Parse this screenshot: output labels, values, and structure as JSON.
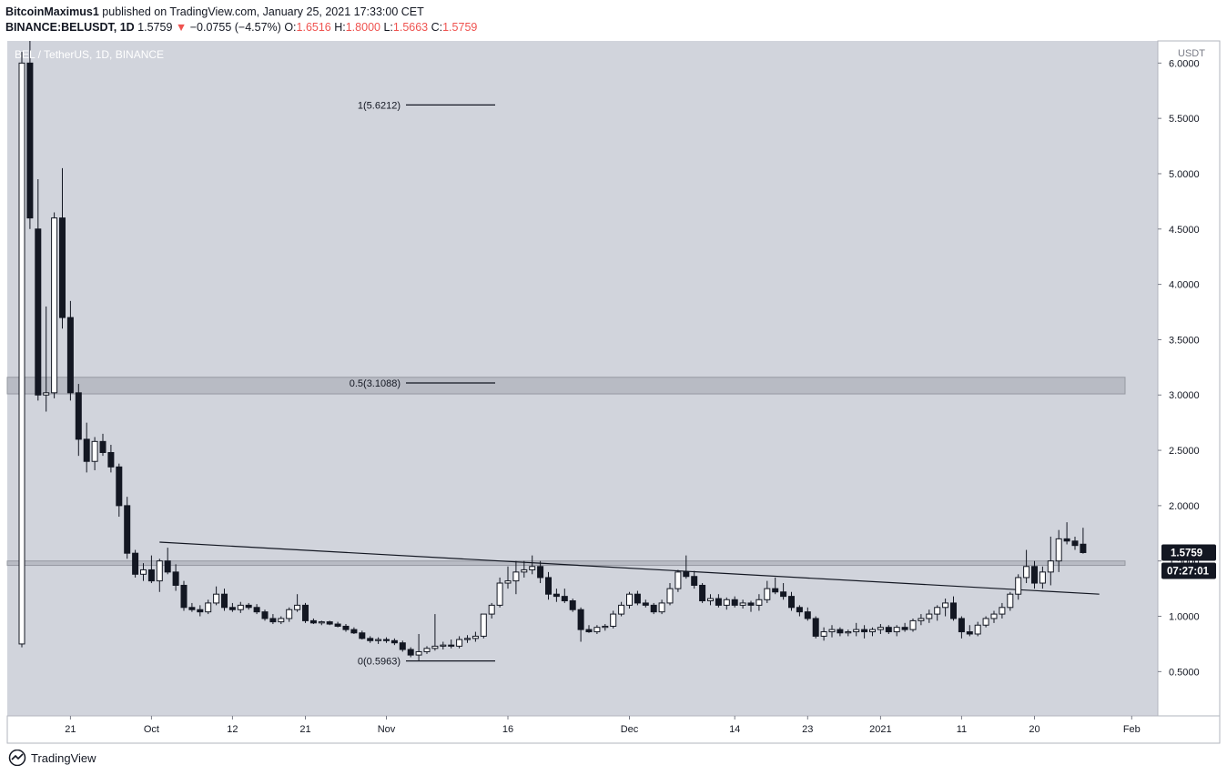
{
  "header": {
    "author": "BitcoinMaximus1",
    "published": "published on TradingView.com, January 25, 2021 17:33:00 CET",
    "symbol": "BINANCE:BELUSDT, 1D",
    "last": "1.5759",
    "change_arrow": "▼",
    "change": "−0.0755 (−4.57%)",
    "o_label": "O:",
    "o": "1.6516",
    "h_label": "H:",
    "h": "1.8000",
    "l_label": "L:",
    "l": "1.5663",
    "c_label": "C:",
    "c": "1.5759"
  },
  "chart_title": "BEL / TetherUS, 1D, BINANCE",
  "currency": "USDT",
  "price_tag": "1.5759",
  "countdown_tag": "07:27:01",
  "footer": {
    "brand": "TradingView"
  },
  "colors": {
    "background": "#d1d4dc",
    "bear": "#131722",
    "bull": "#ffffff",
    "price_tag_bg": "#131722"
  },
  "chart_data": {
    "type": "candlestick",
    "y_axis": {
      "min": 0.1,
      "max": 6.2,
      "ticks": [
        "6.0000",
        "5.5000",
        "5.0000",
        "4.5000",
        "4.0000",
        "3.5000",
        "3.0000",
        "2.5000",
        "2.0000",
        "1.5000",
        "1.0000",
        "0.5000"
      ]
    },
    "x_ticks": [
      {
        "label": "21",
        "index": 6
      },
      {
        "label": "Oct",
        "index": 16
      },
      {
        "label": "12",
        "index": 26
      },
      {
        "label": "21",
        "index": 35
      },
      {
        "label": "Nov",
        "index": 45
      },
      {
        "label": "16",
        "index": 60
      },
      {
        "label": "Dec",
        "index": 75
      },
      {
        "label": "14",
        "index": 88
      },
      {
        "label": "23",
        "index": 97
      },
      {
        "label": "2021",
        "index": 106
      },
      {
        "label": "11",
        "index": 116
      },
      {
        "label": "20",
        "index": 125
      },
      {
        "label": "Feb",
        "index": 137
      }
    ],
    "fib_levels": [
      {
        "label": "1(5.6212)",
        "price": 5.6212
      },
      {
        "label": "0.5(3.1088)",
        "price": 3.1088
      },
      {
        "label": "0(0.5963)",
        "price": 0.5963
      }
    ],
    "zones": [
      {
        "from": 3.01,
        "to": 3.16
      },
      {
        "from": 1.46,
        "to": 1.5
      }
    ],
    "trendline": {
      "from": {
        "index": 17,
        "price": 1.67
      },
      "to": {
        "index": 133,
        "price": 1.2
      }
    },
    "candles": [
      [
        0.75,
        6.1,
        0.72,
        6.0
      ],
      [
        6.0,
        6.2,
        4.5,
        4.6
      ],
      [
        4.5,
        4.95,
        2.95,
        3.0
      ],
      [
        3.0,
        3.8,
        2.85,
        3.02
      ],
      [
        3.02,
        4.65,
        2.97,
        4.6
      ],
      [
        4.6,
        5.05,
        3.6,
        3.7
      ],
      [
        3.7,
        3.85,
        2.95,
        3.02
      ],
      [
        3.02,
        3.1,
        2.45,
        2.6
      ],
      [
        2.6,
        2.75,
        2.3,
        2.4
      ],
      [
        2.4,
        2.62,
        2.32,
        2.58
      ],
      [
        2.58,
        2.65,
        2.45,
        2.48
      ],
      [
        2.48,
        2.55,
        2.3,
        2.35
      ],
      [
        2.35,
        2.38,
        1.9,
        2.0
      ],
      [
        2.0,
        2.08,
        1.52,
        1.57
      ],
      [
        1.57,
        1.6,
        1.35,
        1.38
      ],
      [
        1.38,
        1.48,
        1.32,
        1.42
      ],
      [
        1.42,
        1.55,
        1.3,
        1.32
      ],
      [
        1.32,
        1.52,
        1.22,
        1.5
      ],
      [
        1.5,
        1.62,
        1.38,
        1.4
      ],
      [
        1.4,
        1.47,
        1.23,
        1.28
      ],
      [
        1.28,
        1.32,
        1.05,
        1.08
      ],
      [
        1.08,
        1.12,
        1.04,
        1.06
      ],
      [
        1.06,
        1.1,
        1.0,
        1.04
      ],
      [
        1.04,
        1.15,
        1.02,
        1.12
      ],
      [
        1.12,
        1.27,
        1.1,
        1.2
      ],
      [
        1.2,
        1.25,
        1.05,
        1.08
      ],
      [
        1.08,
        1.12,
        1.04,
        1.06
      ],
      [
        1.06,
        1.13,
        1.03,
        1.1
      ],
      [
        1.1,
        1.12,
        1.06,
        1.08
      ],
      [
        1.08,
        1.11,
        1.02,
        1.04
      ],
      [
        1.04,
        1.06,
        0.96,
        0.98
      ],
      [
        0.98,
        1.02,
        0.93,
        0.95
      ],
      [
        0.95,
        1.0,
        0.93,
        0.98
      ],
      [
        0.98,
        1.08,
        0.95,
        1.06
      ],
      [
        1.06,
        1.2,
        1.04,
        1.1
      ],
      [
        1.1,
        1.12,
        0.94,
        0.96
      ],
      [
        0.96,
        0.98,
        0.93,
        0.94
      ],
      [
        0.94,
        0.96,
        0.92,
        0.95
      ],
      [
        0.95,
        0.96,
        0.92,
        0.93
      ],
      [
        0.93,
        0.95,
        0.9,
        0.91
      ],
      [
        0.91,
        0.93,
        0.86,
        0.88
      ],
      [
        0.88,
        0.9,
        0.84,
        0.85
      ],
      [
        0.85,
        0.87,
        0.79,
        0.8
      ],
      [
        0.8,
        0.82,
        0.76,
        0.78
      ],
      [
        0.78,
        0.81,
        0.75,
        0.79
      ],
      [
        0.79,
        0.81,
        0.76,
        0.78
      ],
      [
        0.78,
        0.8,
        0.74,
        0.76
      ],
      [
        0.76,
        0.78,
        0.68,
        0.7
      ],
      [
        0.7,
        0.72,
        0.63,
        0.65
      ],
      [
        0.65,
        0.84,
        0.6,
        0.68
      ],
      [
        0.68,
        0.73,
        0.66,
        0.71
      ],
      [
        0.71,
        1.02,
        0.69,
        0.73
      ],
      [
        0.73,
        0.77,
        0.7,
        0.74
      ],
      [
        0.74,
        0.79,
        0.71,
        0.73
      ],
      [
        0.73,
        0.82,
        0.71,
        0.79
      ],
      [
        0.79,
        0.83,
        0.76,
        0.8
      ],
      [
        0.8,
        0.86,
        0.77,
        0.82
      ],
      [
        0.82,
        1.0,
        0.8,
        1.02
      ],
      [
        1.02,
        1.12,
        0.98,
        1.1
      ],
      [
        1.1,
        1.35,
        1.08,
        1.3
      ],
      [
        1.3,
        1.45,
        1.25,
        1.32
      ],
      [
        1.32,
        1.5,
        1.2,
        1.4
      ],
      [
        1.4,
        1.5,
        1.35,
        1.42
      ],
      [
        1.42,
        1.55,
        1.38,
        1.45
      ],
      [
        1.45,
        1.5,
        1.3,
        1.35
      ],
      [
        1.35,
        1.4,
        1.15,
        1.2
      ],
      [
        1.2,
        1.25,
        1.13,
        1.18
      ],
      [
        1.18,
        1.25,
        1.12,
        1.14
      ],
      [
        1.14,
        1.16,
        1.04,
        1.06
      ],
      [
        1.06,
        1.08,
        0.77,
        0.88
      ],
      [
        0.88,
        0.92,
        0.85,
        0.86
      ],
      [
        0.86,
        0.92,
        0.84,
        0.9
      ],
      [
        0.9,
        0.93,
        0.87,
        0.91
      ],
      [
        0.91,
        1.05,
        0.89,
        1.02
      ],
      [
        1.02,
        1.13,
        1.0,
        1.1
      ],
      [
        1.1,
        1.22,
        1.07,
        1.2
      ],
      [
        1.2,
        1.23,
        1.1,
        1.12
      ],
      [
        1.12,
        1.15,
        1.08,
        1.1
      ],
      [
        1.1,
        1.12,
        1.02,
        1.04
      ],
      [
        1.04,
        1.15,
        1.02,
        1.12
      ],
      [
        1.12,
        1.3,
        1.1,
        1.25
      ],
      [
        1.25,
        1.42,
        1.22,
        1.4
      ],
      [
        1.4,
        1.55,
        1.34,
        1.36
      ],
      [
        1.36,
        1.41,
        1.25,
        1.28
      ],
      [
        1.28,
        1.3,
        1.12,
        1.14
      ],
      [
        1.14,
        1.2,
        1.1,
        1.16
      ],
      [
        1.16,
        1.2,
        1.08,
        1.1
      ],
      [
        1.1,
        1.17,
        1.06,
        1.15
      ],
      [
        1.15,
        1.18,
        1.08,
        1.1
      ],
      [
        1.1,
        1.15,
        1.07,
        1.12
      ],
      [
        1.12,
        1.14,
        1.04,
        1.1
      ],
      [
        1.1,
        1.2,
        1.05,
        1.15
      ],
      [
        1.15,
        1.32,
        1.12,
        1.25
      ],
      [
        1.25,
        1.35,
        1.2,
        1.22
      ],
      [
        1.22,
        1.3,
        1.15,
        1.18
      ],
      [
        1.18,
        1.22,
        1.05,
        1.08
      ],
      [
        1.08,
        1.1,
        1.0,
        1.04
      ],
      [
        1.04,
        1.08,
        0.96,
        0.98
      ],
      [
        0.98,
        1.0,
        0.8,
        0.82
      ],
      [
        0.82,
        0.9,
        0.78,
        0.86
      ],
      [
        0.86,
        0.92,
        0.81,
        0.88
      ],
      [
        0.88,
        0.9,
        0.82,
        0.85
      ],
      [
        0.85,
        0.88,
        0.82,
        0.86
      ],
      [
        0.86,
        0.94,
        0.82,
        0.88
      ],
      [
        0.88,
        0.92,
        0.8,
        0.86
      ],
      [
        0.86,
        0.9,
        0.82,
        0.88
      ],
      [
        0.88,
        0.93,
        0.84,
        0.9
      ],
      [
        0.9,
        0.92,
        0.84,
        0.86
      ],
      [
        0.86,
        0.92,
        0.82,
        0.9
      ],
      [
        0.9,
        0.94,
        0.86,
        0.88
      ],
      [
        0.88,
        0.98,
        0.86,
        0.96
      ],
      [
        0.96,
        1.02,
        0.92,
        0.98
      ],
      [
        0.98,
        1.06,
        0.94,
        1.02
      ],
      [
        1.02,
        1.1,
        0.96,
        1.08
      ],
      [
        1.08,
        1.16,
        1.0,
        1.12
      ],
      [
        1.12,
        1.18,
        0.96,
        0.98
      ],
      [
        0.98,
        1.0,
        0.8,
        0.86
      ],
      [
        0.86,
        0.92,
        0.82,
        0.84
      ],
      [
        0.84,
        0.95,
        0.82,
        0.92
      ],
      [
        0.92,
        1.0,
        0.9,
        0.98
      ],
      [
        0.98,
        1.05,
        0.94,
        1.02
      ],
      [
        1.02,
        1.12,
        0.98,
        1.08
      ],
      [
        1.08,
        1.22,
        1.05,
        1.2
      ],
      [
        1.2,
        1.38,
        1.15,
        1.35
      ],
      [
        1.35,
        1.6,
        1.3,
        1.45
      ],
      [
        1.45,
        1.5,
        1.25,
        1.3
      ],
      [
        1.3,
        1.45,
        1.25,
        1.4
      ],
      [
        1.4,
        1.72,
        1.28,
        1.5
      ],
      [
        1.5,
        1.78,
        1.4,
        1.7
      ],
      [
        1.7,
        1.85,
        1.65,
        1.68
      ],
      [
        1.68,
        1.72,
        1.6,
        1.64
      ],
      [
        1.6516,
        1.8,
        1.5663,
        1.5759
      ]
    ]
  }
}
